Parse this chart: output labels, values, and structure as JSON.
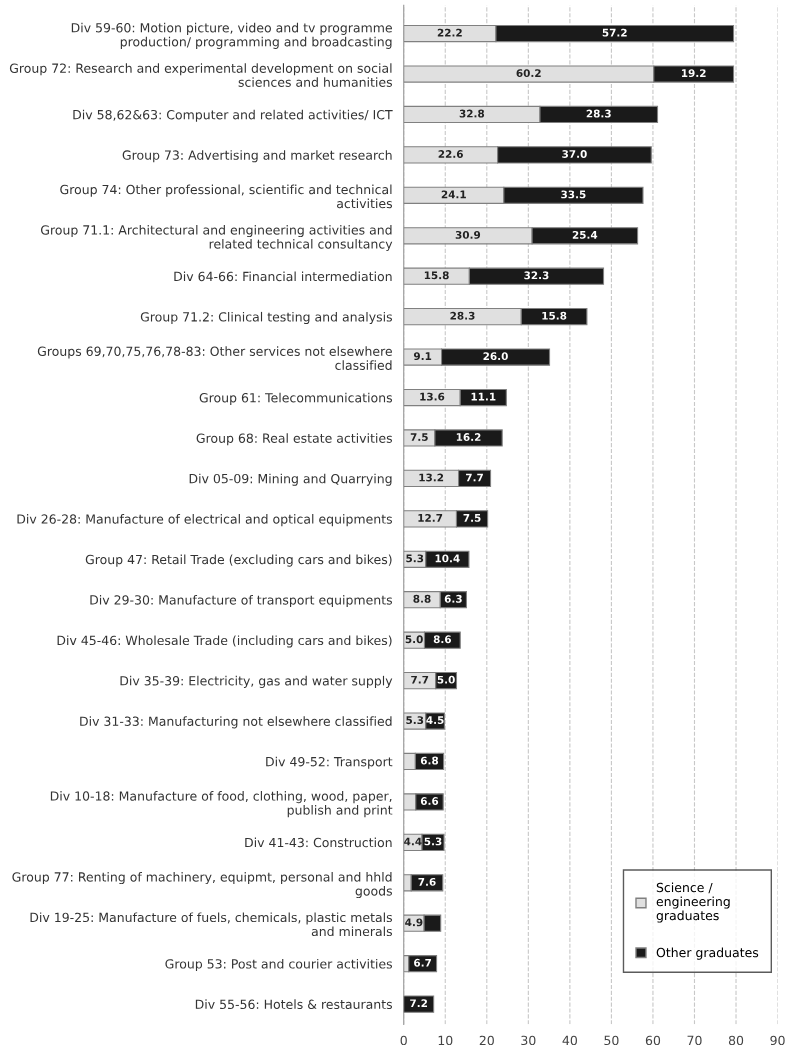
{
  "chart_data": {
    "type": "bar",
    "orientation": "horizontal",
    "stacked": true,
    "categories": [
      "Div 59-60: Motion picture, video and tv programme production/ programming and broadcasting",
      "Group 72: Research and experimental development on social sciences and humanities",
      "Div 58,62&63: Computer and related activities/ ICT",
      "Group 73: Advertising and market research",
      "Group 74: Other professional, scientific and technical activities",
      "Group 71.1: Architectural and engineering activities and related technical consultancy",
      "Div 64-66: Financial intermediation",
      "Group 71.2: Clinical testing and analysis",
      "Groups 69,70,75,76,78-83: Other services not elsewhere classified",
      "Group 61: Telecommunications",
      "Group 68: Real estate activities",
      "Div 05-09: Mining and Quarrying",
      "Div 26-28: Manufacture of electrical and optical equipments",
      "Group 47: Retail Trade (excluding cars and bikes)",
      "Div 29-30: Manufacture of transport equipments",
      "Div 45-46: Wholesale Trade (including cars and bikes)",
      "Div 35-39: Electricity, gas and water supply",
      "Div 31-33: Manufacturing not elsewhere classified",
      "Div 49-52: Transport",
      "Div 10-18: Manufacture of food, clothing, wood, paper, publish and print",
      "Div 41-43: Construction",
      "Group 77: Renting of machinery, equipmt, personal and hhld goods",
      "Div 19-25: Manufacture of fuels, chemicals, plastic metals and minerals",
      "Group 53: Post and courier activities",
      "Div 55-56: Hotels & restaurants"
    ],
    "series": [
      {
        "name": "Science / engineering graduates",
        "color": "#e0e0e0",
        "values": [
          22.2,
          60.2,
          32.8,
          22.6,
          24.1,
          30.9,
          15.8,
          28.3,
          9.1,
          13.6,
          7.5,
          13.2,
          12.7,
          5.3,
          8.8,
          5.0,
          7.7,
          5.3,
          2.8,
          2.9,
          4.4,
          1.8,
          4.9,
          1.2,
          null
        ],
        "value_labels": [
          "22.2",
          "60.2",
          "32.8",
          "22.6",
          "24.1",
          "30.9",
          "15.8",
          "28.3",
          "9.1",
          "13.6",
          "7.5",
          "13.2",
          "12.7",
          "5.3",
          "8.8",
          "5.0",
          "7.7",
          "5.3",
          null,
          null,
          "4.4",
          null,
          "4.9",
          null,
          null
        ]
      },
      {
        "name": "Other graduates",
        "color": "#1a1a1a",
        "values": [
          57.2,
          19.2,
          28.3,
          37.0,
          33.5,
          25.4,
          32.3,
          15.8,
          26.0,
          11.1,
          16.2,
          7.7,
          7.5,
          10.4,
          6.3,
          8.6,
          5.0,
          4.5,
          6.8,
          6.6,
          5.3,
          7.6,
          4.0,
          6.7,
          7.2
        ],
        "value_labels": [
          "57.2",
          "19.2",
          "28.3",
          "37.0",
          "33.5",
          "25.4",
          "32.3",
          "15.8",
          "26.0",
          "11.1",
          "16.2",
          "7.7",
          "7.5",
          "10.4",
          "6.3",
          "8.6",
          "5.0",
          "4.5",
          "6.8",
          "6.6",
          "5.3",
          "7.6",
          null,
          "6.7",
          "7.2"
        ]
      }
    ],
    "xlim": [
      0,
      90
    ],
    "xticks": [
      0,
      10,
      20,
      30,
      40,
      50,
      60,
      70,
      80,
      90
    ],
    "grid": "x",
    "line_style": "dashed",
    "legend": "bottom right"
  }
}
